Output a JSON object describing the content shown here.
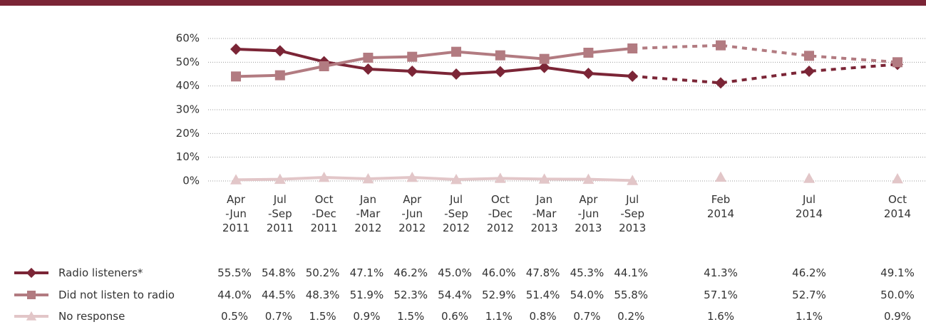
{
  "chart_data": {
    "type": "line",
    "categories": [
      "Apr\n-Jun\n2011",
      "Jul\n-Sep\n2011",
      "Oct\n-Dec\n2011",
      "Jan\n-Mar\n2012",
      "Apr\n-Jun\n2012",
      "Jul\n-Sep\n2012",
      "Oct\n-Dec\n2012",
      "Jan\n-Mar\n2013",
      "Apr\n-Jun\n2013",
      "Jul\n-Sep\n2013",
      "Feb\n2014",
      "Jul\n2014",
      "Oct\n2014"
    ],
    "series": [
      {
        "name": "Radio listeners*",
        "color": "#7b2536",
        "marker": "diamond",
        "values": [
          55.5,
          54.8,
          50.2,
          47.1,
          46.2,
          45.0,
          46.0,
          47.8,
          45.3,
          44.1,
          41.3,
          46.2,
          49.1
        ],
        "value_labels": [
          "55.5%",
          "54.8%",
          "50.2%",
          "47.1%",
          "46.2%",
          "45.0%",
          "46.0%",
          "47.8%",
          "45.3%",
          "44.1%",
          "41.3%",
          "46.2%",
          "49.1%"
        ]
      },
      {
        "name": "Did not listen to radio",
        "color": "#b27b81",
        "marker": "square",
        "values": [
          44.0,
          44.5,
          48.3,
          51.9,
          52.3,
          54.4,
          52.9,
          51.4,
          54.0,
          55.8,
          57.1,
          52.7,
          50.0
        ],
        "value_labels": [
          "44.0%",
          "44.5%",
          "48.3%",
          "51.9%",
          "52.3%",
          "54.4%",
          "52.9%",
          "51.4%",
          "54.0%",
          "55.8%",
          "57.1%",
          "52.7%",
          "50.0%"
        ]
      },
      {
        "name": "No response",
        "color": "#e2c6c8",
        "marker": "triangle",
        "values": [
          0.5,
          0.7,
          1.5,
          0.9,
          1.5,
          0.6,
          1.1,
          0.8,
          0.7,
          0.2,
          1.6,
          1.1,
          0.9
        ],
        "value_labels": [
          "0.5%",
          "0.7%",
          "1.5%",
          "0.9%",
          "1.5%",
          "0.6%",
          "1.1%",
          "0.8%",
          "0.7%",
          "0.2%",
          "1.6%",
          "1.1%",
          "0.9%"
        ]
      }
    ],
    "ylim": [
      0,
      60
    ],
    "yticks": [
      {
        "value": 0,
        "label": "0%"
      },
      {
        "value": 10,
        "label": "10%"
      },
      {
        "value": 20,
        "label": "20%"
      },
      {
        "value": 30,
        "label": "30%"
      },
      {
        "value": 40,
        "label": "40%"
      },
      {
        "value": 50,
        "label": "50%"
      },
      {
        "value": 60,
        "label": "60%"
      }
    ],
    "grid": true
  }
}
